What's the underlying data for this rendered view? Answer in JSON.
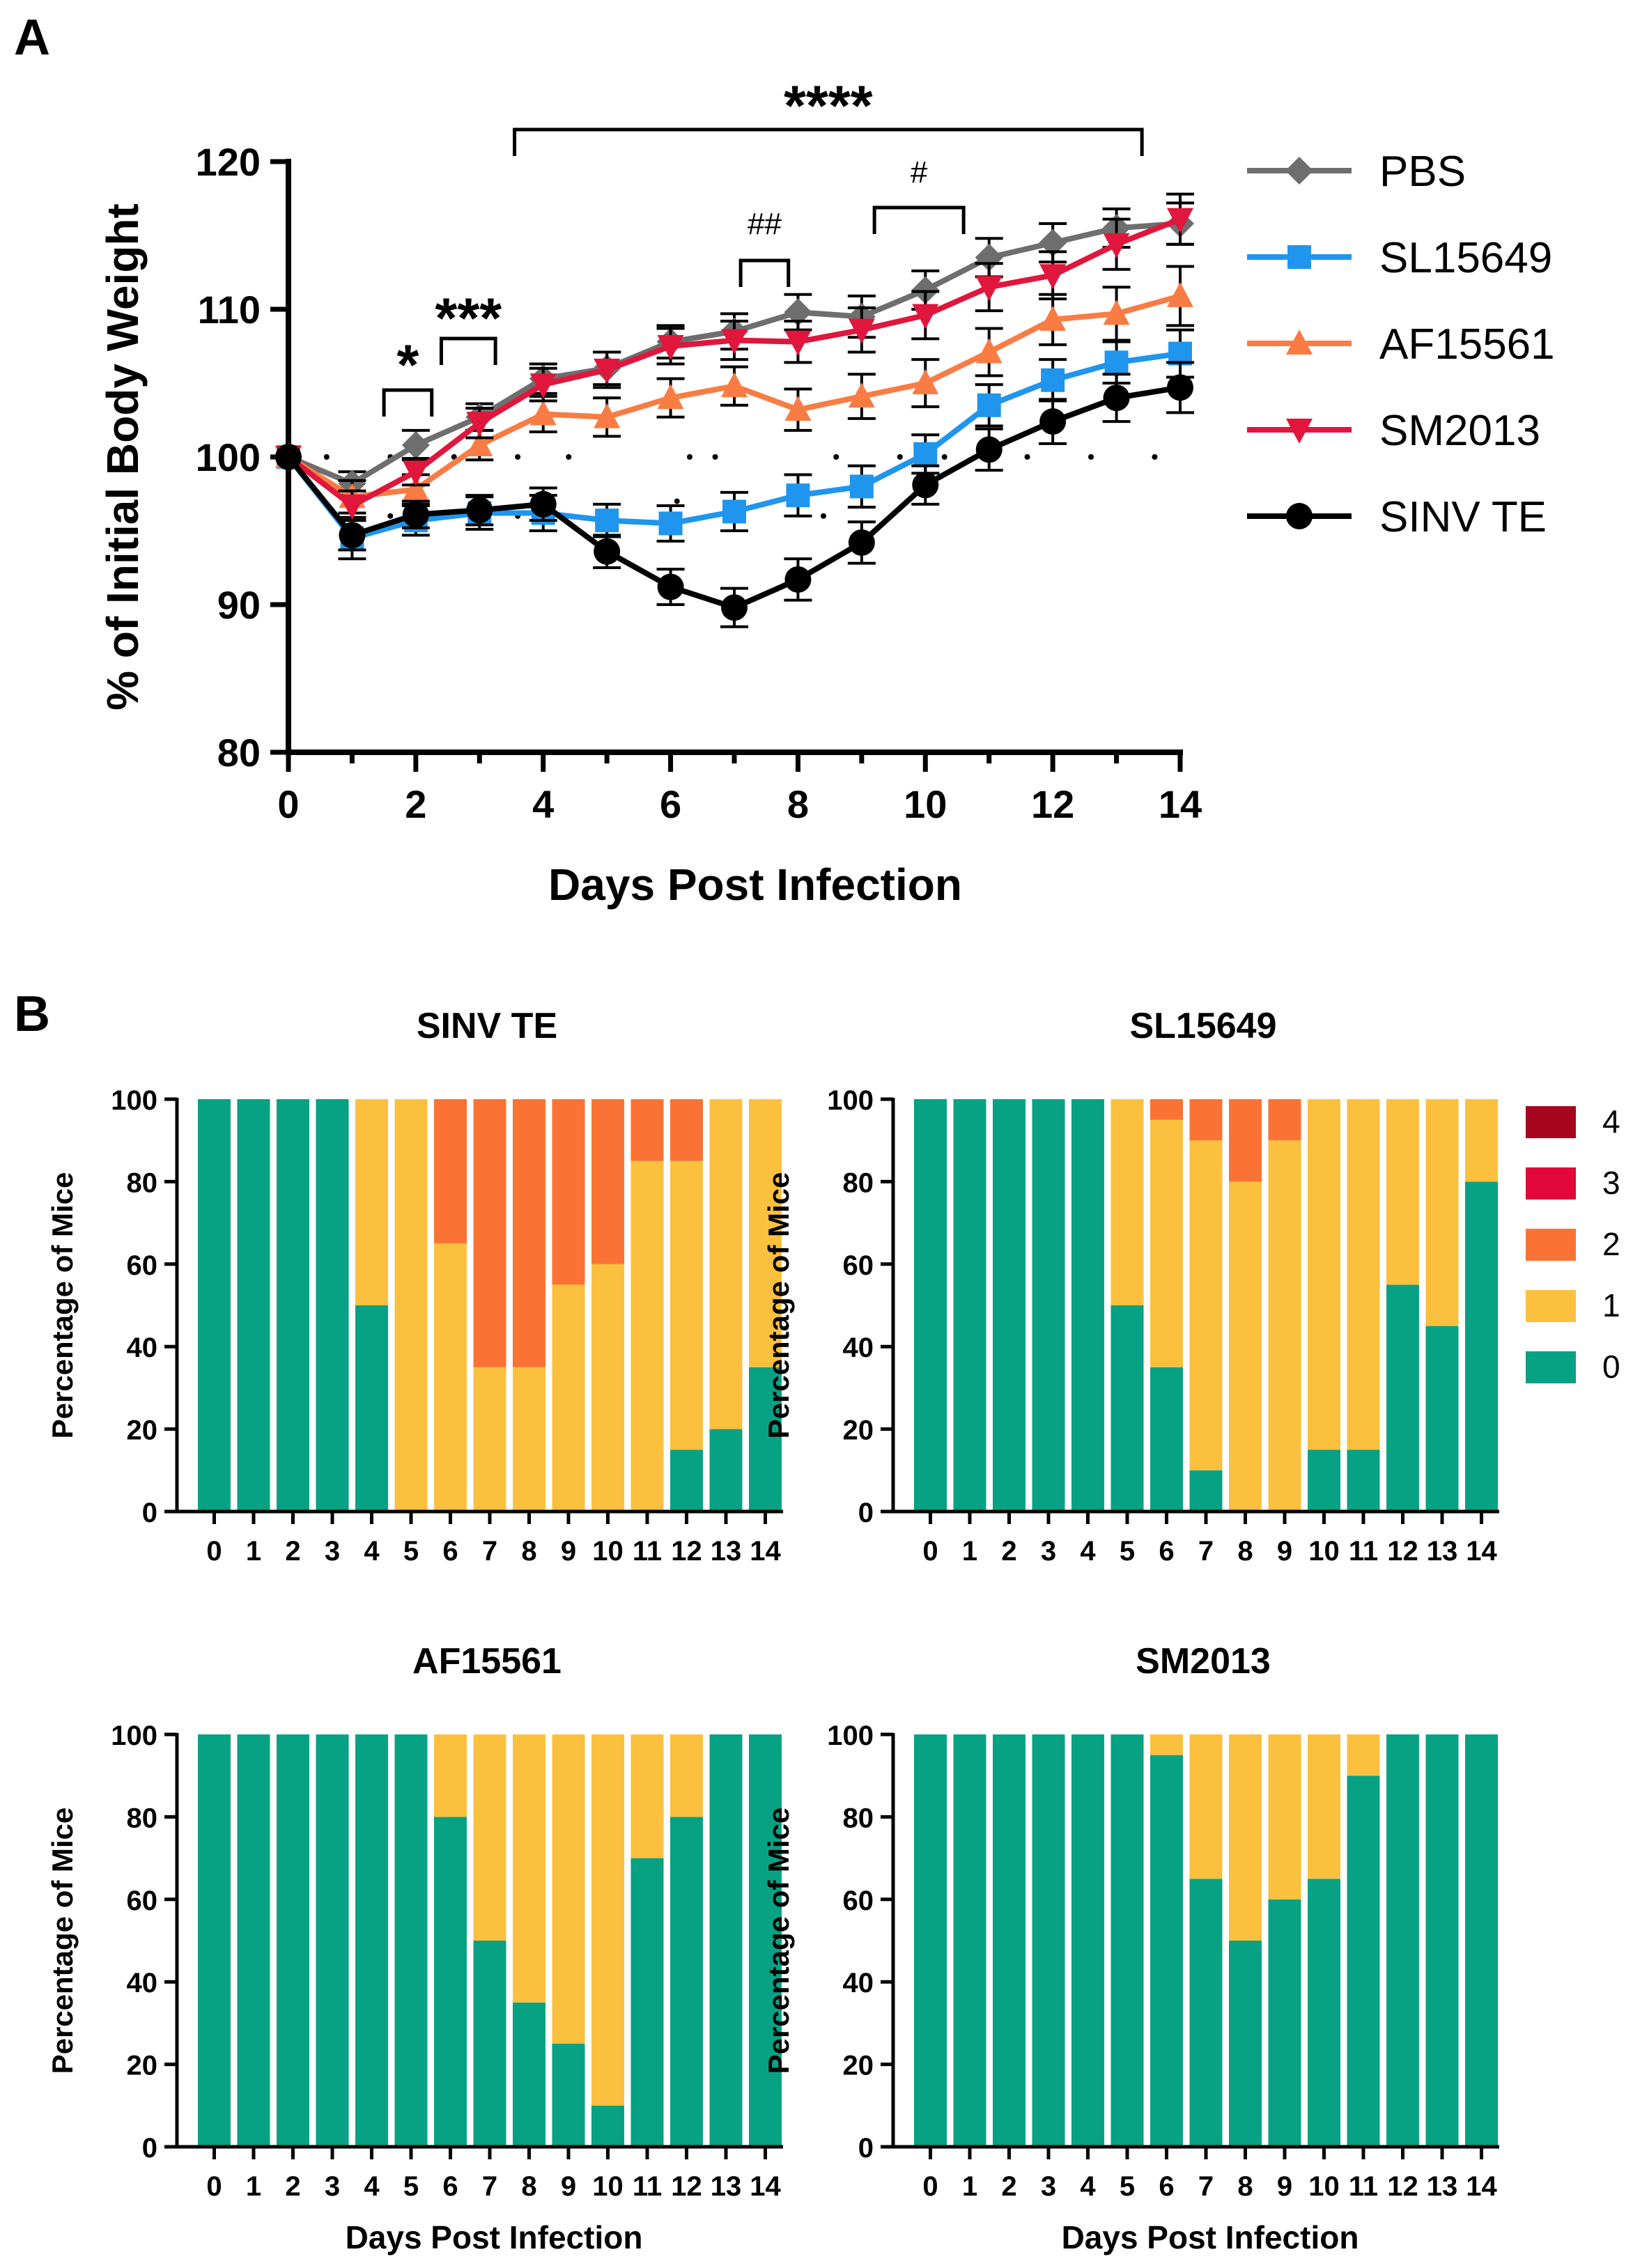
{
  "colors": {
    "PBS": "#6e6e6e",
    "SL15649": "#1f95ee",
    "AF15561": "#f97c44",
    "SM2013": "#e0163c",
    "SINV TE": "#000000",
    "score_4": "#a6071f",
    "score_3": "#e3083a",
    "score_2": "#fb7334",
    "score_1": "#fcc03f",
    "score_0": "#07a283"
  },
  "chart_data": [
    {
      "panel": "A",
      "type": "line",
      "xlabel": "Days Post Infection",
      "ylabel": "% of Initial  Body  Weight",
      "xlim": [
        0,
        14
      ],
      "ylim": [
        80,
        120
      ],
      "xticks": [
        "0",
        "2",
        "4",
        "6",
        "8",
        "10",
        "12",
        "14"
      ],
      "yticks": [
        "80",
        "90",
        "100",
        "110",
        "120"
      ],
      "x": [
        0,
        1,
        2,
        3,
        4,
        5,
        6,
        7,
        8,
        9,
        10,
        11,
        12,
        13,
        14
      ],
      "series": [
        {
          "name": "PBS",
          "marker": "diamond",
          "values": [
            100,
            98.2,
            100.8,
            102.7,
            105.3,
            106,
            107.8,
            108.5,
            109.8,
            109.5,
            111.3,
            113.5,
            114.5,
            115.5,
            115.8
          ],
          "err": [
            0,
            0.8,
            1.0,
            0.9,
            1.0,
            1.1,
            1.1,
            1.2,
            1.2,
            1.4,
            1.3,
            1.3,
            1.3,
            1.3,
            1.4
          ]
        },
        {
          "name": "SL15649",
          "marker": "square",
          "values": [
            100,
            94.5,
            95.7,
            96.2,
            96.2,
            95.7,
            95.5,
            96.3,
            97.4,
            98,
            100.2,
            103.5,
            105.2,
            106.4,
            107
          ],
          "err": [
            0,
            1.4,
            1.0,
            1.1,
            1.2,
            1.1,
            1.2,
            1.3,
            1.4,
            1.4,
            1.3,
            1.4,
            1.4,
            1.4,
            1.6
          ]
        },
        {
          "name": "AF15561",
          "marker": "triangle-up",
          "values": [
            100,
            97.3,
            97.8,
            100.8,
            102.9,
            102.7,
            104,
            104.8,
            103.2,
            104.1,
            105,
            107.1,
            109.3,
            109.7,
            110.9
          ],
          "err": [
            0,
            1.1,
            1.0,
            1.0,
            1.2,
            1.3,
            1.3,
            1.3,
            1.4,
            1.5,
            1.6,
            1.6,
            1.7,
            1.8,
            2.0
          ]
        },
        {
          "name": "SM2013",
          "marker": "triangle-down",
          "values": [
            100,
            96.7,
            99,
            102.3,
            104.9,
            105.9,
            107.5,
            107.9,
            107.8,
            108.6,
            109.6,
            111.5,
            112.3,
            114.4,
            116.1
          ],
          "err": [
            0,
            1.0,
            0.9,
            1.0,
            1.1,
            1.2,
            1.2,
            1.3,
            1.4,
            1.5,
            1.6,
            1.6,
            1.6,
            1.7,
            1.7
          ]
        },
        {
          "name": "SINV TE",
          "marker": "circle",
          "values": [
            100,
            94.7,
            96.1,
            96.4,
            96.8,
            93.6,
            91.2,
            89.8,
            91.7,
            94.2,
            98.1,
            100.5,
            102.4,
            104,
            104.7
          ],
          "err": [
            0,
            1.0,
            0.9,
            1.0,
            1.1,
            1.1,
            1.2,
            1.3,
            1.4,
            1.4,
            1.3,
            1.4,
            1.5,
            1.6,
            1.7
          ]
        }
      ],
      "annotations": [
        {
          "text": "*",
          "x_from": 1.5,
          "x_to": 2.25
        },
        {
          "text": "***",
          "x_from": 2.4,
          "x_to": 3.25
        },
        {
          "text": "****",
          "x_from": 3.55,
          "x_to": 13.4
        },
        {
          "text": "##",
          "x_from": 7.1,
          "x_to": 7.85
        },
        {
          "text": "#",
          "x_from": 9.2,
          "x_to": 10.6
        }
      ],
      "dots": [
        {
          "x": 0.6,
          "y": 100
        },
        {
          "x": 1.6,
          "y": 100
        },
        {
          "x": 2.6,
          "y": 100
        },
        {
          "x": 3.6,
          "y": 100
        },
        {
          "x": 4.4,
          "y": 100
        },
        {
          "x": 6.3,
          "y": 100
        },
        {
          "x": 6.7,
          "y": 100
        },
        {
          "x": 1.6,
          "y": 96
        },
        {
          "x": 2.6,
          "y": 96
        },
        {
          "x": 3.6,
          "y": 96
        },
        {
          "x": 4.4,
          "y": 96
        },
        {
          "x": 6.1,
          "y": 97
        },
        {
          "x": 8.4,
          "y": 96
        },
        {
          "x": 8.6,
          "y": 100
        },
        {
          "x": 9.6,
          "y": 100
        },
        {
          "x": 10.3,
          "y": 100
        },
        {
          "x": 11.6,
          "y": 100
        },
        {
          "x": 12.6,
          "y": 100
        },
        {
          "x": 13.6,
          "y": 100
        }
      ]
    },
    {
      "panel": "B",
      "type": "bar",
      "stacked": true,
      "ylabel": "Percentage of Mice",
      "xlabel": "Days Post Infection",
      "ylim": [
        0,
        100
      ],
      "yticks": [
        "0",
        "20",
        "40",
        "60",
        "80",
        "100"
      ],
      "categories": [
        "0",
        "1",
        "2",
        "3",
        "4",
        "5",
        "6",
        "7",
        "8",
        "9",
        "10",
        "11",
        "12",
        "13",
        "14"
      ],
      "legend": [
        "4",
        "3",
        "2",
        "1",
        "0"
      ],
      "subplots": [
        {
          "title": "SINV TE",
          "series": [
            {
              "name": "0",
              "values": [
                100,
                100,
                100,
                100,
                50,
                0,
                0,
                0,
                0,
                0,
                0,
                0,
                15,
                20,
                35
              ]
            },
            {
              "name": "1",
              "values": [
                0,
                0,
                0,
                0,
                50,
                100,
                65,
                35,
                35,
                55,
                60,
                85,
                70,
                80,
                65
              ]
            },
            {
              "name": "2",
              "values": [
                0,
                0,
                0,
                0,
                0,
                0,
                35,
                65,
                65,
                45,
                40,
                15,
                15,
                0,
                0
              ]
            },
            {
              "name": "3",
              "values": [
                0,
                0,
                0,
                0,
                0,
                0,
                0,
                0,
                0,
                0,
                0,
                0,
                0,
                0,
                0
              ]
            },
            {
              "name": "4",
              "values": [
                0,
                0,
                0,
                0,
                0,
                0,
                0,
                0,
                0,
                0,
                0,
                0,
                0,
                0,
                0
              ]
            }
          ]
        },
        {
          "title": "SL15649",
          "series": [
            {
              "name": "0",
              "values": [
                100,
                100,
                100,
                100,
                100,
                50,
                35,
                10,
                0,
                0,
                15,
                15,
                55,
                45,
                80
              ]
            },
            {
              "name": "1",
              "values": [
                0,
                0,
                0,
                0,
                0,
                50,
                60,
                80,
                80,
                90,
                85,
                85,
                45,
                55,
                20
              ]
            },
            {
              "name": "2",
              "values": [
                0,
                0,
                0,
                0,
                0,
                0,
                5,
                10,
                20,
                10,
                0,
                0,
                0,
                0,
                0
              ]
            },
            {
              "name": "3",
              "values": [
                0,
                0,
                0,
                0,
                0,
                0,
                0,
                0,
                0,
                0,
                0,
                0,
                0,
                0,
                0
              ]
            },
            {
              "name": "4",
              "values": [
                0,
                0,
                0,
                0,
                0,
                0,
                0,
                0,
                0,
                0,
                0,
                0,
                0,
                0,
                0
              ]
            }
          ]
        },
        {
          "title": "AF15561",
          "series": [
            {
              "name": "0",
              "values": [
                100,
                100,
                100,
                100,
                100,
                100,
                80,
                50,
                35,
                25,
                10,
                70,
                80,
                100,
                100
              ]
            },
            {
              "name": "1",
              "values": [
                0,
                0,
                0,
                0,
                0,
                0,
                20,
                50,
                65,
                75,
                90,
                30,
                20,
                0,
                0
              ]
            },
            {
              "name": "2",
              "values": [
                0,
                0,
                0,
                0,
                0,
                0,
                0,
                0,
                0,
                0,
                0,
                0,
                0,
                0,
                0
              ]
            },
            {
              "name": "3",
              "values": [
                0,
                0,
                0,
                0,
                0,
                0,
                0,
                0,
                0,
                0,
                0,
                0,
                0,
                0,
                0
              ]
            },
            {
              "name": "4",
              "values": [
                0,
                0,
                0,
                0,
                0,
                0,
                0,
                0,
                0,
                0,
                0,
                0,
                0,
                0,
                0
              ]
            }
          ]
        },
        {
          "title": "SM2013",
          "series": [
            {
              "name": "0",
              "values": [
                100,
                100,
                100,
                100,
                100,
                100,
                95,
                65,
                50,
                60,
                65,
                90,
                100,
                100,
                100
              ]
            },
            {
              "name": "1",
              "values": [
                0,
                0,
                0,
                0,
                0,
                0,
                5,
                35,
                50,
                40,
                35,
                10,
                0,
                0,
                0
              ]
            },
            {
              "name": "2",
              "values": [
                0,
                0,
                0,
                0,
                0,
                0,
                0,
                0,
                0,
                0,
                0,
                0,
                0,
                0,
                0
              ]
            },
            {
              "name": "3",
              "values": [
                0,
                0,
                0,
                0,
                0,
                0,
                0,
                0,
                0,
                0,
                0,
                0,
                0,
                0,
                0
              ]
            },
            {
              "name": "4",
              "values": [
                0,
                0,
                0,
                0,
                0,
                0,
                0,
                0,
                0,
                0,
                0,
                0,
                0,
                0,
                0
              ]
            }
          ]
        }
      ]
    }
  ]
}
